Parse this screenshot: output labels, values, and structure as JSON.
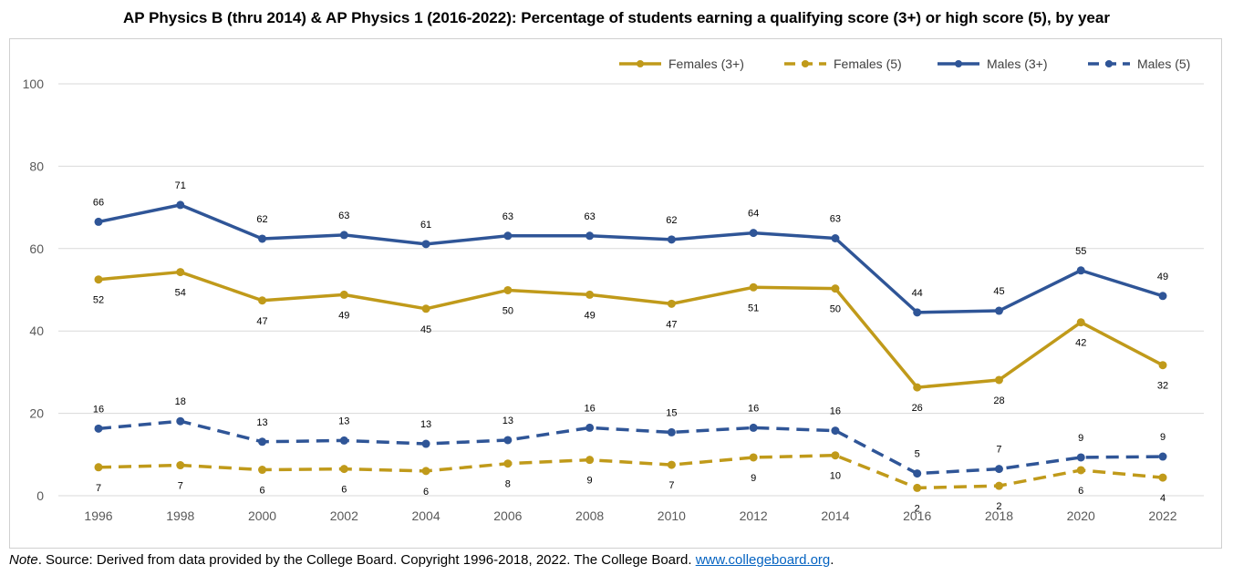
{
  "title": "AP Physics B (thru 2014) & AP Physics 1 (2016-2022): Percentage of students earning a qualifying score (3+) or high score (5), by year",
  "note": {
    "prefix": "Note",
    "text": ". Source: Derived from data provided by the College Board. Copyright 1996-2018, 2022. The College Board. ",
    "link": "www.collegeboard.org",
    "suffix": "."
  },
  "colors": {
    "gold": "#c09a1a",
    "blue": "#2f5597",
    "grid": "#d9d9d9",
    "axis_text": "#595959"
  },
  "chart_data": {
    "type": "line",
    "title": "AP Physics B (thru 2014) & AP Physics 1 (2016-2022): Percentage of students earning a qualifying score (3+) or high score (5), by year",
    "x": [
      "1996",
      "1998",
      "2000",
      "2002",
      "2004",
      "2006",
      "2008",
      "2010",
      "2012",
      "2014",
      "2016",
      "2018",
      "2020",
      "2022"
    ],
    "yticks": [
      "0",
      "20",
      "40",
      "60",
      "80",
      "100"
    ],
    "ylim": [
      0,
      100
    ],
    "grid": true,
    "legend_position": "top-right",
    "series": [
      {
        "name": "Females (3+)",
        "color": "#c09a1a",
        "dashed": false,
        "label_pos": "below",
        "values": [
          52.5,
          54.3,
          47.4,
          48.8,
          45.4,
          49.9,
          48.8,
          46.6,
          50.6,
          50.3,
          26.3,
          28.1,
          42.1,
          31.7
        ],
        "labels": [
          "52",
          "54",
          "47",
          "49",
          "45",
          "50",
          "49",
          "47",
          "51",
          "50",
          "26",
          "28",
          "42",
          "32"
        ]
      },
      {
        "name": "Females (5)",
        "color": "#c09a1a",
        "dashed": true,
        "label_pos": "below",
        "values": [
          6.9,
          7.4,
          6.3,
          6.5,
          6.0,
          7.8,
          8.7,
          7.5,
          9.3,
          9.8,
          1.9,
          2.4,
          6.2,
          4.4
        ],
        "labels": [
          "7",
          "7",
          "6",
          "6",
          "6",
          "8",
          "9",
          "7",
          "9",
          "10",
          "2",
          "2",
          "6",
          "4"
        ]
      },
      {
        "name": "Males (3+)",
        "color": "#2f5597",
        "dashed": false,
        "label_pos": "above",
        "values": [
          66.5,
          70.6,
          62.4,
          63.3,
          61.1,
          63.1,
          63.1,
          62.2,
          63.8,
          62.5,
          44.5,
          44.9,
          54.7,
          48.5
        ],
        "labels": [
          "66",
          "71",
          "62",
          "63",
          "61",
          "63",
          "63",
          "62",
          "64",
          "63",
          "44",
          "45",
          "55",
          "49"
        ]
      },
      {
        "name": "Males (5)",
        "color": "#2f5597",
        "dashed": true,
        "label_pos": "above",
        "values": [
          16.3,
          18.1,
          13.1,
          13.4,
          12.6,
          13.5,
          16.5,
          15.4,
          16.5,
          15.8,
          5.4,
          6.5,
          9.3,
          9.5
        ],
        "labels": [
          "16",
          "18",
          "13",
          "13",
          "13",
          "13",
          "16",
          "15",
          "16",
          "16",
          "5",
          "7",
          "9",
          "9"
        ]
      }
    ]
  }
}
